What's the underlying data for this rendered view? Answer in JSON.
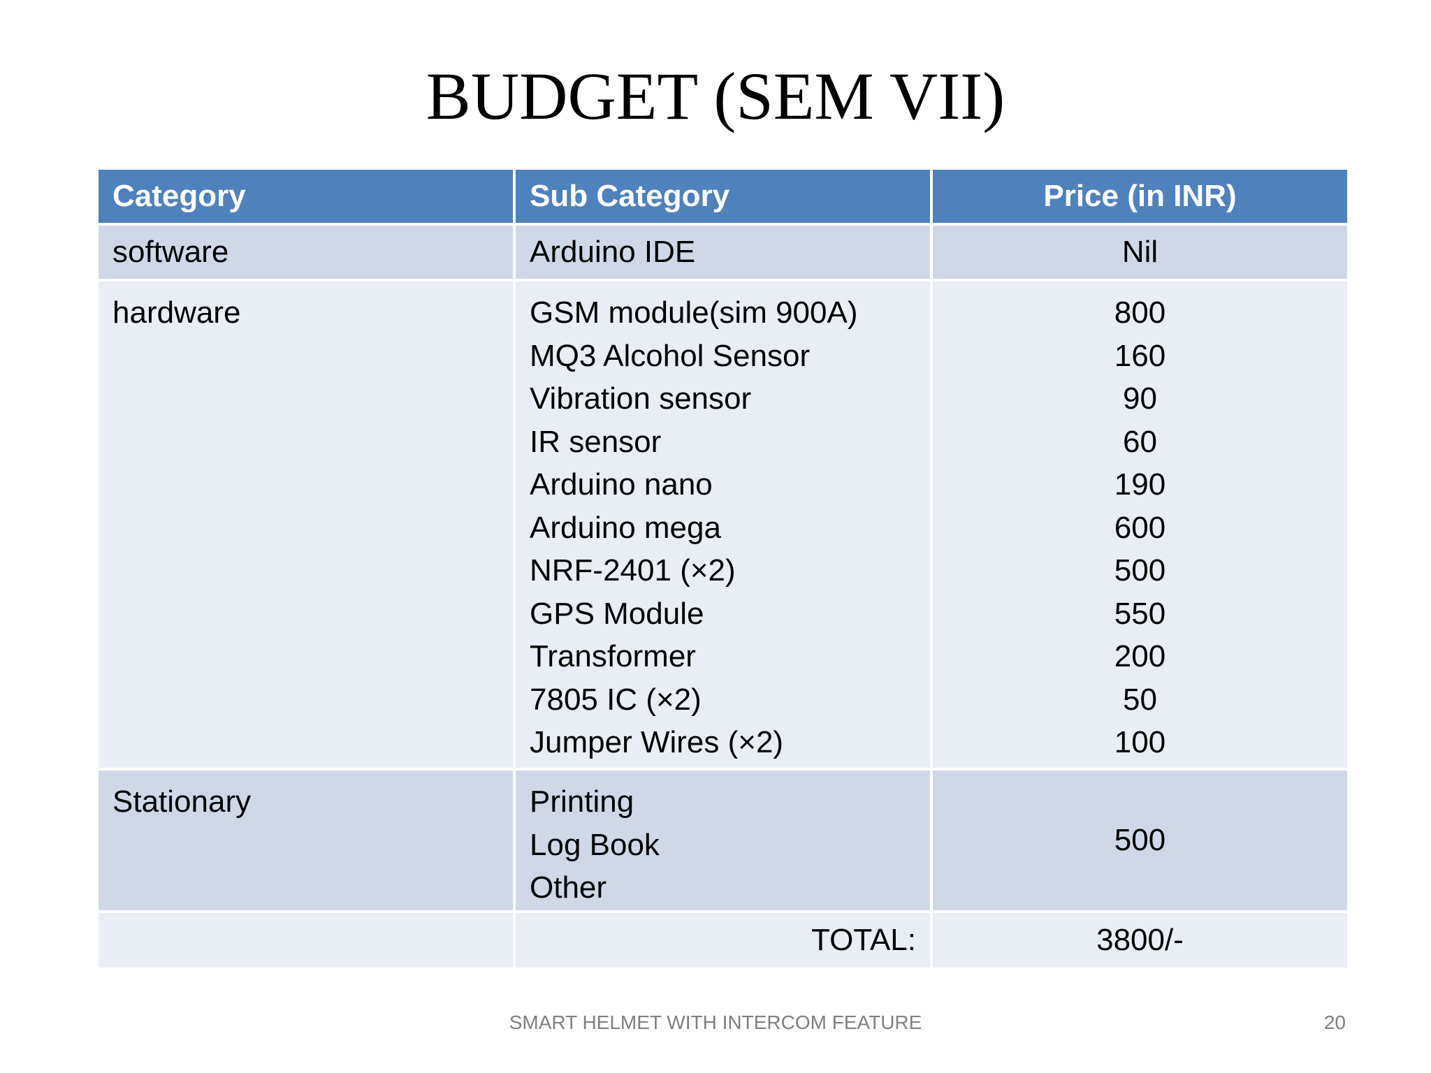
{
  "slide": {
    "title": "BUDGET (SEM VII)",
    "footer": "SMART HELMET WITH INTERCOM FEATURE",
    "page_number": "20"
  },
  "table": {
    "headers": {
      "category": "Category",
      "sub_category": "Sub Category",
      "price": "Price (in INR)"
    },
    "software": {
      "category": "software",
      "items": [
        {
          "name": "Arduino IDE",
          "price": "Nil"
        }
      ]
    },
    "hardware": {
      "category": "hardware",
      "items": [
        {
          "name": "GSM module(sim 900A)",
          "price": "800"
        },
        {
          "name": "MQ3 Alcohol Sensor",
          "price": "160"
        },
        {
          "name": "Vibration sensor",
          "price": "90"
        },
        {
          "name": "IR sensor",
          "price": "60"
        },
        {
          "name": "Arduino nano",
          "price": "190"
        },
        {
          "name": "Arduino mega",
          "price": "600"
        },
        {
          "name": "NRF-2401 (×2)",
          "price": "500"
        },
        {
          "name": "GPS Module",
          "price": "550"
        },
        {
          "name": "Transformer",
          "price": "200"
        },
        {
          "name": "7805 IC (×2)",
          "price": "50"
        },
        {
          "name": "Jumper Wires (×2)",
          "price": "100"
        }
      ]
    },
    "stationary": {
      "category": "Stationary",
      "items": [
        "Printing",
        "Log Book",
        "Other"
      ],
      "price": "500"
    },
    "total": {
      "label": "TOTAL:",
      "value": "3800/-"
    }
  },
  "colors": {
    "header_bg": "#4f81bd",
    "row_dark": "#d0d8e8",
    "row_light": "#e9edf4"
  }
}
